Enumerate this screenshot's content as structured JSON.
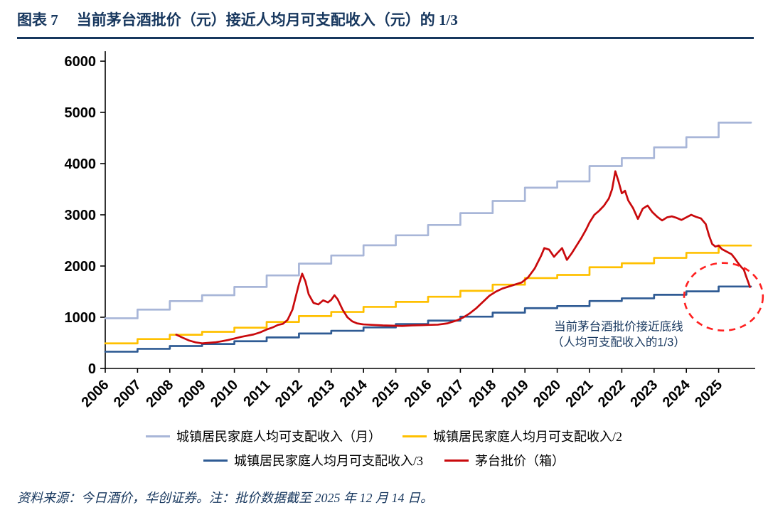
{
  "header": {
    "label": "图表 7",
    "title": "当前茅台酒批价（元）接近人均月可支配收入（元）的 1/3"
  },
  "footer": {
    "source_note": "资料来源：今日酒价，华创证券。注：批价数据截至 2025 年 12 月 14 日。"
  },
  "colors": {
    "title_navy": "#17375E",
    "axis_black": "#000000",
    "income_month": "#A8B6D8",
    "income_half": "#FFC000",
    "income_third": "#2F5B94",
    "moutai_red": "#C9090C",
    "highlight_red": "#FF2020"
  },
  "legend": {
    "rows": [
      [
        0,
        1
      ],
      [
        2,
        3
      ]
    ]
  },
  "chart_data": {
    "type": "line",
    "title": "当前茅台酒批价（元）接近人均月可支配收入（元）的 1/3",
    "xlabel": "",
    "ylabel": "",
    "grid": false,
    "legend_position": "bottom",
    "xlim": [
      2006,
      2026
    ],
    "ylim": [
      0,
      6000
    ],
    "yticks": [
      0,
      1000,
      2000,
      3000,
      4000,
      5000,
      6000
    ],
    "xticks": [
      2006,
      2007,
      2008,
      2009,
      2010,
      2011,
      2012,
      2013,
      2014,
      2015,
      2016,
      2017,
      2018,
      2019,
      2020,
      2021,
      2022,
      2023,
      2024,
      2025
    ],
    "series": [
      {
        "name": "城镇居民家庭人均可支配收入（月）",
        "type": "step",
        "color": "#A8B6D8",
        "years": [
          2006,
          2007,
          2008,
          2009,
          2010,
          2011,
          2012,
          2013,
          2014,
          2015,
          2016,
          2017,
          2018,
          2019,
          2020,
          2021,
          2022,
          2023,
          2024,
          2025
        ],
        "values": [
          980,
          1149,
          1315,
          1431,
          1592,
          1817,
          2047,
          2206,
          2404,
          2600,
          2801,
          3033,
          3271,
          3530,
          3653,
          3951,
          4107,
          4318,
          4516,
          4800
        ]
      },
      {
        "name": "城镇居民家庭人均月可支配收入/2",
        "type": "step",
        "color": "#FFC000",
        "years": [
          2006,
          2007,
          2008,
          2009,
          2010,
          2011,
          2012,
          2013,
          2014,
          2015,
          2016,
          2017,
          2018,
          2019,
          2020,
          2021,
          2022,
          2023,
          2024,
          2025
        ],
        "values": [
          490,
          574,
          658,
          715,
          796,
          908,
          1023,
          1103,
          1202,
          1300,
          1400,
          1516,
          1636,
          1765,
          1826,
          1976,
          2054,
          2159,
          2258,
          2400
        ]
      },
      {
        "name": "城镇居民家庭人均月可支配收入/3",
        "type": "step",
        "color": "#2F5B94",
        "years": [
          2006,
          2007,
          2008,
          2009,
          2010,
          2011,
          2012,
          2013,
          2014,
          2015,
          2016,
          2017,
          2018,
          2019,
          2020,
          2021,
          2022,
          2023,
          2024,
          2025
        ],
        "values": [
          327,
          383,
          438,
          477,
          531,
          606,
          682,
          735,
          801,
          867,
          934,
          1011,
          1090,
          1177,
          1218,
          1317,
          1369,
          1439,
          1505,
          1600
        ]
      },
      {
        "name": "茅台批价（箱）",
        "type": "line",
        "color": "#C9090C",
        "points": [
          [
            2008.2,
            660
          ],
          [
            2008.4,
            600
          ],
          [
            2008.6,
            545
          ],
          [
            2008.8,
            510
          ],
          [
            2009.0,
            490
          ],
          [
            2009.2,
            500
          ],
          [
            2009.4,
            510
          ],
          [
            2009.6,
            530
          ],
          [
            2009.8,
            555
          ],
          [
            2010.0,
            585
          ],
          [
            2010.2,
            615
          ],
          [
            2010.4,
            640
          ],
          [
            2010.6,
            665
          ],
          [
            2010.8,
            705
          ],
          [
            2011.0,
            760
          ],
          [
            2011.2,
            805
          ],
          [
            2011.35,
            850
          ],
          [
            2011.5,
            870
          ],
          [
            2011.65,
            950
          ],
          [
            2011.8,
            1150
          ],
          [
            2011.9,
            1400
          ],
          [
            2012.0,
            1650
          ],
          [
            2012.1,
            1850
          ],
          [
            2012.2,
            1700
          ],
          [
            2012.3,
            1450
          ],
          [
            2012.45,
            1280
          ],
          [
            2012.6,
            1250
          ],
          [
            2012.75,
            1330
          ],
          [
            2012.9,
            1290
          ],
          [
            2013.0,
            1340
          ],
          [
            2013.1,
            1430
          ],
          [
            2013.2,
            1350
          ],
          [
            2013.35,
            1150
          ],
          [
            2013.5,
            1000
          ],
          [
            2013.65,
            920
          ],
          [
            2013.8,
            880
          ],
          [
            2014.0,
            860
          ],
          [
            2014.3,
            850
          ],
          [
            2014.6,
            840
          ],
          [
            2014.9,
            835
          ],
          [
            2015.2,
            830
          ],
          [
            2015.5,
            840
          ],
          [
            2015.8,
            845
          ],
          [
            2016.0,
            850
          ],
          [
            2016.3,
            855
          ],
          [
            2016.6,
            880
          ],
          [
            2016.9,
            940
          ],
          [
            2017.1,
            1000
          ],
          [
            2017.3,
            1080
          ],
          [
            2017.5,
            1180
          ],
          [
            2017.7,
            1300
          ],
          [
            2017.9,
            1420
          ],
          [
            2018.1,
            1500
          ],
          [
            2018.3,
            1560
          ],
          [
            2018.5,
            1600
          ],
          [
            2018.7,
            1640
          ],
          [
            2018.9,
            1680
          ],
          [
            2019.1,
            1780
          ],
          [
            2019.3,
            1950
          ],
          [
            2019.5,
            2200
          ],
          [
            2019.6,
            2350
          ],
          [
            2019.75,
            2320
          ],
          [
            2019.9,
            2180
          ],
          [
            2020.0,
            2250
          ],
          [
            2020.15,
            2350
          ],
          [
            2020.3,
            2120
          ],
          [
            2020.45,
            2250
          ],
          [
            2020.6,
            2400
          ],
          [
            2020.75,
            2550
          ],
          [
            2020.9,
            2720
          ],
          [
            2021.0,
            2850
          ],
          [
            2021.15,
            3000
          ],
          [
            2021.3,
            3080
          ],
          [
            2021.45,
            3180
          ],
          [
            2021.6,
            3320
          ],
          [
            2021.7,
            3500
          ],
          [
            2021.8,
            3850
          ],
          [
            2021.9,
            3650
          ],
          [
            2022.0,
            3420
          ],
          [
            2022.1,
            3470
          ],
          [
            2022.2,
            3280
          ],
          [
            2022.35,
            3130
          ],
          [
            2022.5,
            2920
          ],
          [
            2022.65,
            3120
          ],
          [
            2022.8,
            3180
          ],
          [
            2022.95,
            3050
          ],
          [
            2023.1,
            2960
          ],
          [
            2023.25,
            2890
          ],
          [
            2023.4,
            2950
          ],
          [
            2023.55,
            2970
          ],
          [
            2023.7,
            2940
          ],
          [
            2023.85,
            2900
          ],
          [
            2024.0,
            2950
          ],
          [
            2024.15,
            3000
          ],
          [
            2024.3,
            2960
          ],
          [
            2024.45,
            2930
          ],
          [
            2024.6,
            2820
          ],
          [
            2024.7,
            2600
          ],
          [
            2024.8,
            2430
          ],
          [
            2024.9,
            2380
          ],
          [
            2025.0,
            2400
          ],
          [
            2025.1,
            2330
          ],
          [
            2025.25,
            2280
          ],
          [
            2025.4,
            2230
          ],
          [
            2025.5,
            2150
          ],
          [
            2025.6,
            2060
          ],
          [
            2025.7,
            1980
          ],
          [
            2025.78,
            1930
          ],
          [
            2025.85,
            1800
          ],
          [
            2025.92,
            1680
          ],
          [
            2025.97,
            1590
          ]
        ]
      }
    ],
    "annotation": {
      "lines": [
        "当前茅台酒批价接近底线",
        "（人均可支配收入的1/3）"
      ],
      "x": 2021.9,
      "y": 740,
      "color": "#17375E"
    },
    "highlight_ellipse": {
      "cx": 2025.15,
      "cy": 1400,
      "rx_years": 1.22,
      "ry_value": 660,
      "color": "#FF2020",
      "style": "dashed"
    }
  }
}
